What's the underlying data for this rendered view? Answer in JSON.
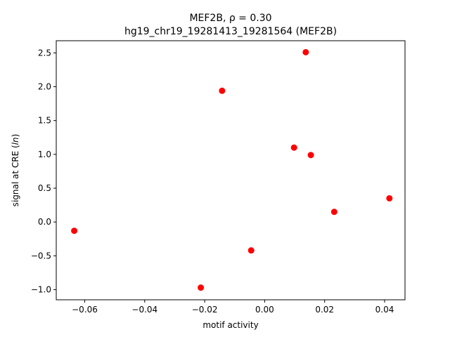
{
  "chart_data": {
    "type": "scatter",
    "title_line1": "MEF2B, ρ = 0.30",
    "title_line2": "hg19_chr19_19281413_19281564 (MEF2B)",
    "xlabel": "motif activity",
    "ylabel": "signal at CRE (ln)",
    "ylabel_prefix": "signal at CRE (",
    "ylabel_var": "ln",
    "ylabel_suffix": ")",
    "xlim": [
      -0.0695,
      0.0468
    ],
    "ylim": [
      -1.15,
      2.68
    ],
    "xticks": [
      -0.06,
      -0.04,
      -0.02,
      0.0,
      0.02,
      0.04
    ],
    "xtick_labels": [
      "−0.06",
      "−0.04",
      "−0.02",
      "0.00",
      "0.02",
      "0.04"
    ],
    "yticks": [
      -1.0,
      -0.5,
      0.0,
      0.5,
      1.0,
      1.5,
      2.0,
      2.5
    ],
    "ytick_labels": [
      "−1.0",
      "−0.5",
      "0.0",
      "0.5",
      "1.0",
      "1.5",
      "2.0",
      "2.5"
    ],
    "marker_color": "#ff0000",
    "grid": false,
    "points": [
      {
        "x": -0.0635,
        "y": -0.13
      },
      {
        "x": -0.0213,
        "y": -0.97
      },
      {
        "x": -0.0142,
        "y": 1.94
      },
      {
        "x": -0.0045,
        "y": -0.42
      },
      {
        "x": 0.0098,
        "y": 1.1
      },
      {
        "x": 0.0137,
        "y": 2.51
      },
      {
        "x": 0.0154,
        "y": 0.99
      },
      {
        "x": 0.0232,
        "y": 0.15
      },
      {
        "x": 0.0416,
        "y": 0.35
      }
    ]
  }
}
